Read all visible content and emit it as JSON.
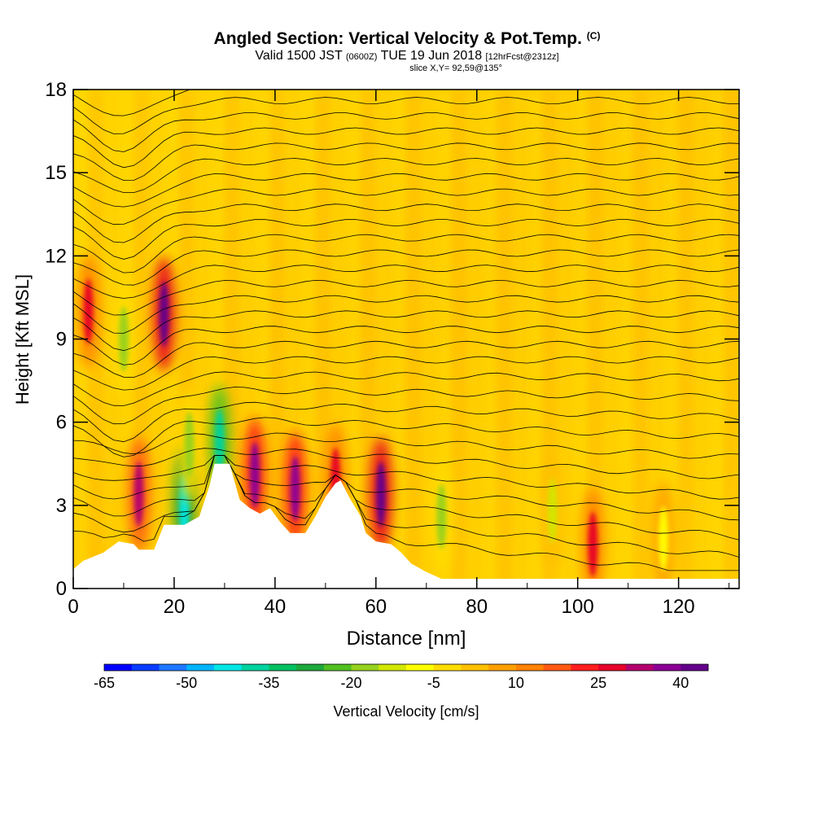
{
  "header": {
    "title": "Angled Section: Vertical Velocity & Pot.Temp.",
    "title_mark": "(C)",
    "valid_prefix": "Valid 1500 JST",
    "valid_utc": "(0600Z)",
    "valid_date": "TUE 19 Jun 2018",
    "forecast": "[12hrFcst@2312z]",
    "slice": "slice X,Y= 92,59@135°"
  },
  "colorbar": {
    "label": "Vertical Velocity [cm/s]",
    "tick_labels": [
      "-65",
      "-50",
      "-35",
      "-20",
      "-5",
      "10",
      "25",
      "40"
    ],
    "colors": [
      "#0000ff",
      "#0a3cff",
      "#1e78ff",
      "#00b4ff",
      "#00e6e6",
      "#00d2a0",
      "#00c060",
      "#1ea83c",
      "#50c020",
      "#96d21e",
      "#d2e600",
      "#ffff00",
      "#ffdc00",
      "#ffc000",
      "#ffa000",
      "#ff8200",
      "#ff5a14",
      "#ff1e1e",
      "#e60028",
      "#b4006e",
      "#8c0096",
      "#64008c"
    ]
  },
  "chart_data": {
    "type": "heatmap",
    "xlabel": "Distance [nm]",
    "ylabel": "Height [Kft MSL]",
    "xlim": [
      0,
      132
    ],
    "ylim": [
      0,
      18
    ],
    "x_ticks": [
      0,
      20,
      40,
      60,
      80,
      100,
      120
    ],
    "y_ticks": [
      0,
      3,
      6,
      9,
      12,
      15,
      18
    ],
    "colorbar_range": [
      -65,
      45
    ],
    "colorbar_step": 5,
    "terrain_profile": [
      [
        0,
        0.7
      ],
      [
        2,
        1.0
      ],
      [
        6,
        1.3
      ],
      [
        9,
        1.7
      ],
      [
        12,
        1.6
      ],
      [
        13,
        1.4
      ],
      [
        16,
        1.4
      ],
      [
        18,
        2.3
      ],
      [
        22,
        2.3
      ],
      [
        25,
        2.6
      ],
      [
        27,
        3.7
      ],
      [
        28,
        4.5
      ],
      [
        31,
        4.5
      ],
      [
        33,
        3.2
      ],
      [
        35,
        2.9
      ],
      [
        37,
        2.7
      ],
      [
        39,
        2.9
      ],
      [
        41,
        2.4
      ],
      [
        43,
        2.0
      ],
      [
        46,
        2.0
      ],
      [
        48,
        2.6
      ],
      [
        50,
        3.3
      ],
      [
        52,
        3.8
      ],
      [
        53,
        3.9
      ],
      [
        55,
        3.2
      ],
      [
        57,
        2.6
      ],
      [
        58,
        2.0
      ],
      [
        60,
        1.7
      ],
      [
        63,
        1.6
      ],
      [
        65,
        1.3
      ],
      [
        67,
        0.9
      ],
      [
        70,
        0.6
      ],
      [
        73,
        0.35
      ],
      [
        132,
        0.35
      ]
    ],
    "velocity_cells": [
      {
        "x": 13,
        "y": 3.4,
        "v": 30
      },
      {
        "x": 18,
        "y": 9.9,
        "v": 40
      },
      {
        "x": 22,
        "y": 3.0,
        "v": -45
      },
      {
        "x": 29,
        "y": 5.3,
        "v": -40
      },
      {
        "x": 36,
        "y": 4.1,
        "v": 35
      },
      {
        "x": 44,
        "y": 3.6,
        "v": 35
      },
      {
        "x": 61,
        "y": 3.4,
        "v": 40
      },
      {
        "x": 3,
        "y": 10.0,
        "v": 25
      },
      {
        "x": 52,
        "y": 3.9,
        "v": 25
      },
      {
        "x": 10,
        "y": 9.0,
        "v": -20
      },
      {
        "x": 23,
        "y": 5.2,
        "v": -20
      },
      {
        "x": 73,
        "y": 2.6,
        "v": -20
      },
      {
        "x": 95,
        "y": 2.8,
        "v": -15
      },
      {
        "x": 117,
        "y": 1.8,
        "v": -10
      },
      {
        "x": 103,
        "y": 1.6,
        "v": 25
      }
    ]
  }
}
